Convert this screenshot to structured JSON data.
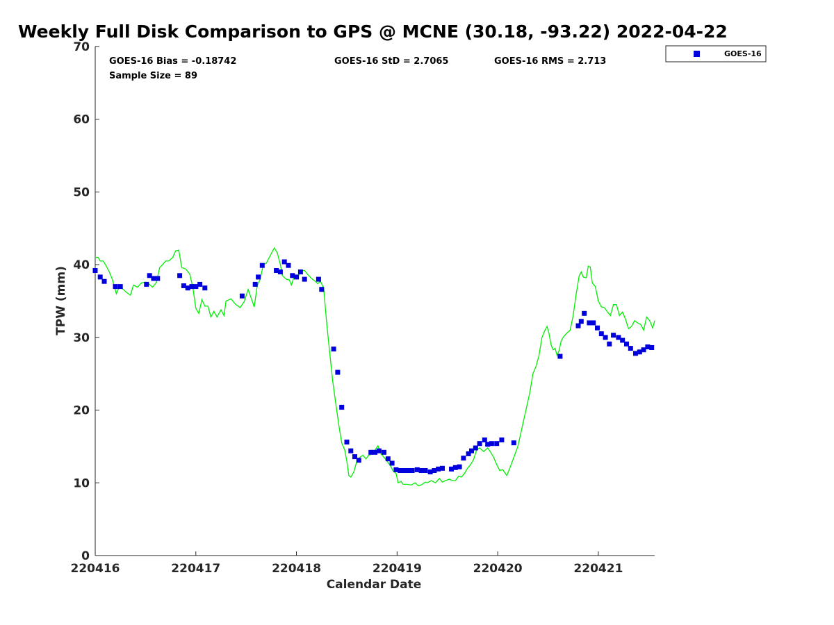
{
  "chart_data": {
    "type": "scatter",
    "title": "Weekly Full Disk Comparison to GPS @ MCNE (30.18, -93.22) 2022-04-22",
    "xlabel": "Calendar Date",
    "ylabel": "TPW (mm)",
    "xlim": [
      220416.0,
      220421.56
    ],
    "ylim": [
      0,
      70
    ],
    "x_ticks": [
      "220416",
      "220417",
      "220418",
      "220419",
      "220420",
      "220421"
    ],
    "y_ticks": [
      0,
      10,
      20,
      30,
      40,
      50,
      60,
      70
    ],
    "stats": {
      "bias": "GOES-16 Bias = -0.18742",
      "std": "GOES-16 StD = 2.7065",
      "rms": "GOES-16 RMS = 2.713",
      "sample": "Sample Size = 89"
    },
    "legend": {
      "position": "top-right",
      "entries": [
        "GOES-16"
      ]
    },
    "colors": {
      "goes": "#0000dd",
      "gps": "#00ee00",
      "axis": "#262626"
    },
    "series": [
      {
        "name": "GOES-16",
        "kind": "scatter",
        "points": [
          [
            220416.0,
            39.2
          ],
          [
            220416.05,
            38.3
          ],
          [
            220416.09,
            37.7
          ],
          [
            220416.2,
            37.0
          ],
          [
            220416.25,
            37.0
          ],
          [
            220416.51,
            37.3
          ],
          [
            220416.54,
            38.5
          ],
          [
            220416.58,
            38.1
          ],
          [
            220416.62,
            38.1
          ],
          [
            220416.84,
            38.5
          ],
          [
            220416.88,
            37.1
          ],
          [
            220416.92,
            36.8
          ],
          [
            220416.96,
            37.0
          ],
          [
            220417.0,
            37.0
          ],
          [
            220417.04,
            37.3
          ],
          [
            220417.09,
            36.8
          ],
          [
            220417.46,
            35.7
          ],
          [
            220417.59,
            37.3
          ],
          [
            220417.62,
            38.3
          ],
          [
            220417.66,
            39.9
          ],
          [
            220417.8,
            39.2
          ],
          [
            220417.84,
            39.0
          ],
          [
            220417.88,
            40.4
          ],
          [
            220417.92,
            39.9
          ],
          [
            220417.96,
            38.5
          ],
          [
            220418.0,
            38.3
          ],
          [
            220418.04,
            39.0
          ],
          [
            220418.08,
            38.0
          ],
          [
            220418.22,
            38.0
          ],
          [
            220418.25,
            36.6
          ],
          [
            220418.37,
            28.4
          ],
          [
            220418.41,
            25.2
          ],
          [
            220418.45,
            20.4
          ],
          [
            220418.5,
            15.6
          ],
          [
            220418.54,
            14.4
          ],
          [
            220418.58,
            13.6
          ],
          [
            220418.62,
            13.1
          ],
          [
            220418.74,
            14.2
          ],
          [
            220418.78,
            14.2
          ],
          [
            220418.82,
            14.4
          ],
          [
            220418.87,
            14.2
          ],
          [
            220418.91,
            13.3
          ],
          [
            220418.95,
            12.7
          ],
          [
            220418.99,
            11.8
          ],
          [
            220419.03,
            11.7
          ],
          [
            220419.07,
            11.7
          ],
          [
            220419.11,
            11.7
          ],
          [
            220419.15,
            11.7
          ],
          [
            220419.2,
            11.8
          ],
          [
            220419.24,
            11.7
          ],
          [
            220419.28,
            11.7
          ],
          [
            220419.33,
            11.5
          ],
          [
            220419.37,
            11.7
          ],
          [
            220419.41,
            11.9
          ],
          [
            220419.45,
            12.0
          ],
          [
            220419.54,
            11.9
          ],
          [
            220419.58,
            12.1
          ],
          [
            220419.62,
            12.2
          ],
          [
            220419.66,
            13.4
          ],
          [
            220419.71,
            14.0
          ],
          [
            220419.74,
            14.4
          ],
          [
            220419.78,
            14.8
          ],
          [
            220419.82,
            15.4
          ],
          [
            220419.87,
            15.9
          ],
          [
            220419.9,
            15.3
          ],
          [
            220419.94,
            15.4
          ],
          [
            220419.99,
            15.4
          ],
          [
            220420.04,
            15.9
          ],
          [
            220420.16,
            15.5
          ],
          [
            220420.62,
            27.4
          ],
          [
            220420.8,
            31.6
          ],
          [
            220420.83,
            32.2
          ],
          [
            220420.86,
            33.3
          ],
          [
            220420.91,
            32.0
          ],
          [
            220420.95,
            32.0
          ],
          [
            220420.99,
            31.3
          ],
          [
            220421.03,
            30.5
          ],
          [
            220421.07,
            30.0
          ],
          [
            220421.11,
            29.1
          ],
          [
            220421.15,
            30.3
          ],
          [
            220421.2,
            30.0
          ],
          [
            220421.24,
            29.6
          ],
          [
            220421.28,
            29.1
          ],
          [
            220421.32,
            28.5
          ],
          [
            220421.37,
            27.8
          ],
          [
            220421.41,
            28.0
          ],
          [
            220421.45,
            28.3
          ],
          [
            220421.49,
            28.7
          ],
          [
            220421.53,
            28.6
          ]
        ]
      },
      {
        "name": "",
        "kind": "line",
        "points": [
          [
            220416.0,
            41.0
          ],
          [
            220416.03,
            41.0
          ],
          [
            220416.05,
            40.5
          ],
          [
            220416.08,
            40.5
          ],
          [
            220416.11,
            39.8
          ],
          [
            220416.14,
            39.0
          ],
          [
            220416.17,
            38.0
          ],
          [
            220416.21,
            36.0
          ],
          [
            220416.24,
            37.0
          ],
          [
            220416.28,
            36.6
          ],
          [
            220416.31,
            36.2
          ],
          [
            220416.35,
            35.8
          ],
          [
            220416.38,
            37.2
          ],
          [
            220416.42,
            36.9
          ],
          [
            220416.46,
            37.5
          ],
          [
            220416.5,
            37.6
          ],
          [
            220416.53,
            37.4
          ],
          [
            220416.57,
            36.9
          ],
          [
            220416.61,
            37.6
          ],
          [
            220416.64,
            39.6
          ],
          [
            220416.67,
            40.0
          ],
          [
            220416.7,
            40.5
          ],
          [
            220416.73,
            40.5
          ],
          [
            220416.77,
            41.0
          ],
          [
            220416.8,
            41.9
          ],
          [
            220416.83,
            42.0
          ],
          [
            220416.86,
            39.6
          ],
          [
            220416.9,
            39.4
          ],
          [
            220416.94,
            38.7
          ],
          [
            220416.97,
            36.9
          ],
          [
            220417.0,
            34.0
          ],
          [
            220417.03,
            33.3
          ],
          [
            220417.06,
            35.2
          ],
          [
            220417.09,
            34.3
          ],
          [
            220417.12,
            34.3
          ],
          [
            220417.15,
            32.8
          ],
          [
            220417.18,
            33.6
          ],
          [
            220417.21,
            32.8
          ],
          [
            220417.25,
            33.8
          ],
          [
            220417.28,
            33.0
          ],
          [
            220417.3,
            35.0
          ],
          [
            220417.35,
            35.3
          ],
          [
            220417.39,
            34.6
          ],
          [
            220417.44,
            34.1
          ],
          [
            220417.48,
            34.9
          ],
          [
            220417.52,
            36.6
          ],
          [
            220417.55,
            35.4
          ],
          [
            220417.58,
            34.2
          ],
          [
            220417.61,
            37.1
          ],
          [
            220417.64,
            38.0
          ],
          [
            220417.67,
            40.0
          ],
          [
            220417.7,
            40.2
          ],
          [
            220417.73,
            41.0
          ],
          [
            220417.76,
            41.8
          ],
          [
            220417.78,
            42.3
          ],
          [
            220417.81,
            41.6
          ],
          [
            220417.84,
            40.0
          ],
          [
            220417.86,
            38.5
          ],
          [
            220417.9,
            38.0
          ],
          [
            220417.93,
            37.9
          ],
          [
            220417.95,
            37.2
          ],
          [
            220417.98,
            38.5
          ],
          [
            220418.02,
            38.5
          ],
          [
            220418.05,
            39.2
          ],
          [
            220418.08,
            39.2
          ],
          [
            220418.11,
            38.7
          ],
          [
            220418.15,
            38.1
          ],
          [
            220418.18,
            37.8
          ],
          [
            220418.21,
            37.4
          ],
          [
            220418.24,
            37.7
          ],
          [
            220418.27,
            36.8
          ],
          [
            220418.3,
            32.0
          ],
          [
            220418.33,
            28.0
          ],
          [
            220418.36,
            24.0
          ],
          [
            220418.39,
            21.0
          ],
          [
            220418.42,
            18.0
          ],
          [
            220418.45,
            15.5
          ],
          [
            220418.48,
            14.5
          ],
          [
            220418.5,
            13.0
          ],
          [
            220418.52,
            11.0
          ],
          [
            220418.54,
            10.8
          ],
          [
            220418.57,
            11.5
          ],
          [
            220418.6,
            13.0
          ],
          [
            220418.63,
            13.5
          ],
          [
            220418.66,
            13.8
          ],
          [
            220418.69,
            13.3
          ],
          [
            220418.72,
            13.8
          ],
          [
            220418.75,
            14.0
          ],
          [
            220418.78,
            14.5
          ],
          [
            220418.81,
            15.1
          ],
          [
            220418.84,
            14.0
          ],
          [
            220418.87,
            13.5
          ],
          [
            220418.9,
            13.0
          ],
          [
            220418.94,
            12.2
          ],
          [
            220418.96,
            11.6
          ],
          [
            220418.99,
            11.3
          ],
          [
            220419.01,
            10.0
          ],
          [
            220419.04,
            10.2
          ],
          [
            220419.06,
            9.8
          ],
          [
            220419.1,
            9.8
          ],
          [
            220419.14,
            9.7
          ],
          [
            220419.18,
            10.0
          ],
          [
            220419.21,
            9.6
          ],
          [
            220419.24,
            9.7
          ],
          [
            220419.28,
            10.1
          ],
          [
            220419.3,
            10.0
          ],
          [
            220419.34,
            10.3
          ],
          [
            220419.38,
            10.0
          ],
          [
            220419.42,
            10.6
          ],
          [
            220419.45,
            10.1
          ],
          [
            220419.48,
            10.3
          ],
          [
            220419.52,
            10.5
          ],
          [
            220419.55,
            10.3
          ],
          [
            220419.58,
            10.3
          ],
          [
            220419.61,
            10.9
          ],
          [
            220419.64,
            10.8
          ],
          [
            220419.67,
            11.3
          ],
          [
            220419.7,
            12.0
          ],
          [
            220419.73,
            12.5
          ],
          [
            220419.76,
            13.2
          ],
          [
            220419.79,
            14.5
          ],
          [
            220419.82,
            14.8
          ],
          [
            220419.86,
            14.3
          ],
          [
            220419.9,
            14.8
          ],
          [
            220419.93,
            14.2
          ],
          [
            220419.96,
            13.5
          ],
          [
            220419.99,
            12.5
          ],
          [
            220420.02,
            11.7
          ],
          [
            220420.05,
            11.8
          ],
          [
            220420.09,
            11.0
          ],
          [
            220420.12,
            12.0
          ],
          [
            220420.16,
            13.5
          ],
          [
            220420.2,
            15.0
          ],
          [
            220420.24,
            17.5
          ],
          [
            220420.28,
            20.0
          ],
          [
            220420.32,
            22.5
          ],
          [
            220420.35,
            25.0
          ],
          [
            220420.38,
            26.0
          ],
          [
            220420.41,
            27.5
          ],
          [
            220420.44,
            30.0
          ],
          [
            220420.47,
            31.0
          ],
          [
            220420.49,
            31.5
          ],
          [
            220420.51,
            30.5
          ],
          [
            220420.53,
            29.0
          ],
          [
            220420.55,
            28.3
          ],
          [
            220420.57,
            28.5
          ],
          [
            220420.59,
            27.5
          ],
          [
            220420.61,
            28.2
          ],
          [
            220420.63,
            29.5
          ],
          [
            220420.65,
            30.0
          ],
          [
            220420.68,
            30.5
          ],
          [
            220420.72,
            31.0
          ],
          [
            220420.75,
            33.0
          ],
          [
            220420.78,
            36.0
          ],
          [
            220420.81,
            38.5
          ],
          [
            220420.83,
            39.0
          ],
          [
            220420.85,
            38.3
          ],
          [
            220420.88,
            38.2
          ],
          [
            220420.9,
            39.8
          ],
          [
            220420.92,
            39.7
          ],
          [
            220420.94,
            37.5
          ],
          [
            220420.97,
            37.0
          ],
          [
            220421.0,
            35.0
          ],
          [
            220421.03,
            34.2
          ],
          [
            220421.06,
            34.1
          ],
          [
            220421.09,
            33.5
          ],
          [
            220421.12,
            33.0
          ],
          [
            220421.15,
            34.5
          ],
          [
            220421.18,
            34.5
          ],
          [
            220421.21,
            33.0
          ],
          [
            220421.24,
            33.5
          ],
          [
            220421.27,
            32.5
          ],
          [
            220421.3,
            31.2
          ],
          [
            220421.33,
            31.5
          ],
          [
            220421.36,
            32.3
          ],
          [
            220421.39,
            32.0
          ],
          [
            220421.42,
            31.8
          ],
          [
            220421.45,
            31.0
          ],
          [
            220421.48,
            32.8
          ],
          [
            220421.51,
            32.3
          ],
          [
            220421.54,
            31.3
          ],
          [
            220421.56,
            32.3
          ]
        ]
      }
    ]
  }
}
